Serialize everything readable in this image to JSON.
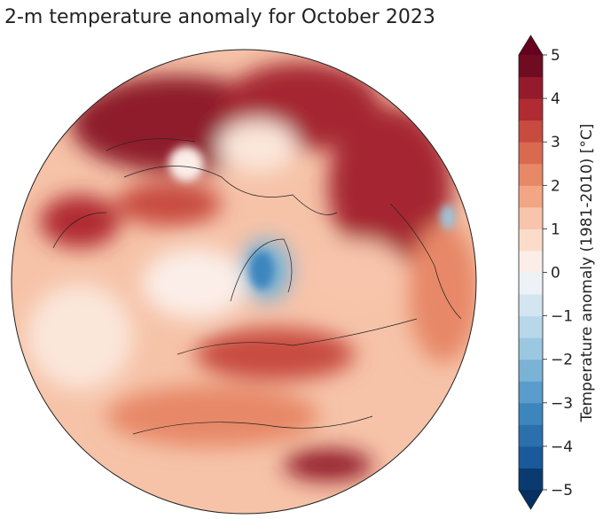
{
  "title": "2-m temperature anomaly for October 2023",
  "colorbar": {
    "label": "Temperature anomaly (1981-2010) [°C]",
    "lim": [
      -5,
      5
    ],
    "extend": "both",
    "ticks": [
      {
        "value": -5,
        "label": "−5"
      },
      {
        "value": -4,
        "label": "−4"
      },
      {
        "value": -3,
        "label": "−3"
      },
      {
        "value": -2,
        "label": "−2"
      },
      {
        "value": -1,
        "label": "−1"
      },
      0,
      1,
      2,
      3,
      4,
      5
    ],
    "colors": [
      "#0a3b70",
      "#1a5a9a",
      "#2b6fad",
      "#3d85bd",
      "#5a9ccb",
      "#7ab3d6",
      "#9ac8e0",
      "#b8d7e9",
      "#d3e5f0",
      "#ecf2f6",
      "#fbeee8",
      "#fbdccb",
      "#f8c4ab",
      "#f3a684",
      "#e78867",
      "#d96a50",
      "#c84b3f",
      "#b12b32",
      "#931b2c",
      "#700c22"
    ],
    "under_color": "#053061",
    "over_color": "#67001f"
  }
}
